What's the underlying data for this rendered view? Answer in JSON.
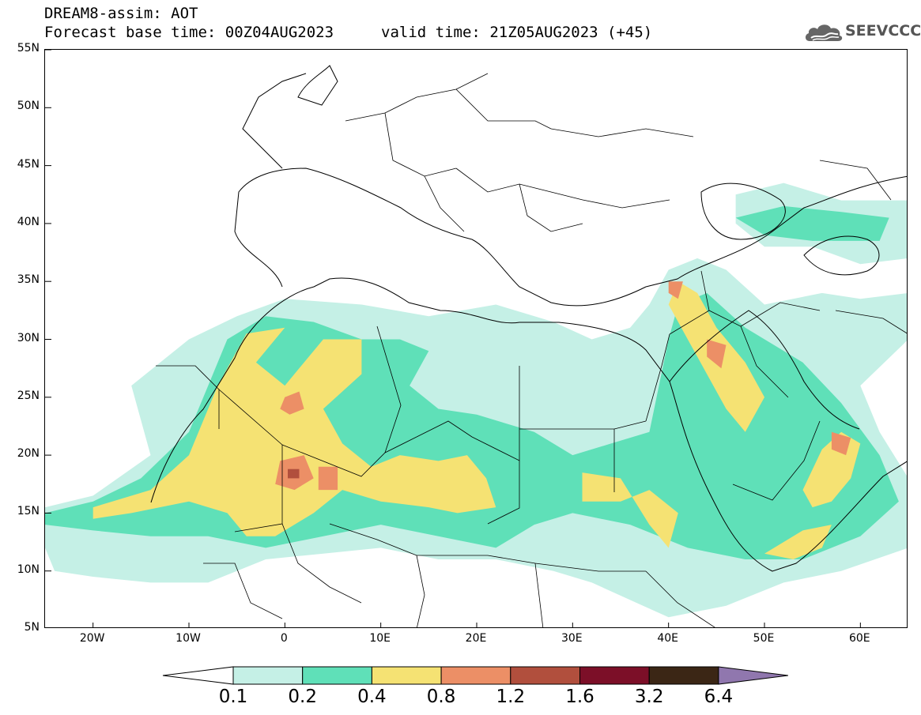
{
  "header": {
    "title": "DREAM8-assim: AOT",
    "base_time": "Forecast base time: 00Z04AUG2023",
    "valid_time": "valid time: 21Z05AUG2023 (+45)"
  },
  "logo": {
    "text": "SEEVCCC",
    "icon": "cloud-logo-icon",
    "color": "#555555"
  },
  "map": {
    "lon_range": [
      -25,
      65
    ],
    "lat_range": [
      5,
      55
    ],
    "lat_ticks": [
      {
        "value": 55,
        "label": "55N"
      },
      {
        "value": 50,
        "label": "50N"
      },
      {
        "value": 45,
        "label": "45N"
      },
      {
        "value": 40,
        "label": "40N"
      },
      {
        "value": 35,
        "label": "35N"
      },
      {
        "value": 30,
        "label": "30N"
      },
      {
        "value": 25,
        "label": "25N"
      },
      {
        "value": 20,
        "label": "20N"
      },
      {
        "value": 15,
        "label": "15N"
      },
      {
        "value": 10,
        "label": "10N"
      },
      {
        "value": 5,
        "label": "5N"
      }
    ],
    "lon_ticks": [
      {
        "value": -20,
        "label": "20W"
      },
      {
        "value": -10,
        "label": "10W"
      },
      {
        "value": 0,
        "label": "0"
      },
      {
        "value": 10,
        "label": "10E"
      },
      {
        "value": 20,
        "label": "20E"
      },
      {
        "value": 30,
        "label": "30E"
      },
      {
        "value": 40,
        "label": "40E"
      },
      {
        "value": 50,
        "label": "50E"
      },
      {
        "value": 60,
        "label": "60E"
      }
    ]
  },
  "colorbar": {
    "levels": [
      "0.1",
      "0.2",
      "0.4",
      "0.8",
      "1.2",
      "1.6",
      "3.2",
      "6.4"
    ],
    "colors": [
      "#ffffff",
      "#c5f0e6",
      "#5fe0b8",
      "#f5e273",
      "#ec8f66",
      "#b14f3d",
      "#7c0f28",
      "#3b2615",
      "#9077ae"
    ],
    "extend": "both"
  },
  "chart_data": {
    "type": "heatmap",
    "variable": "AOT",
    "thresholds": [
      0.1,
      0.2,
      0.4,
      0.8,
      1.2,
      1.6,
      3.2,
      6.4
    ],
    "regions": [
      {
        "level": 1,
        "points": [
          [
            -25,
            15.5
          ],
          [
            -20,
            16.5
          ],
          [
            -14,
            20
          ],
          [
            -16,
            26
          ],
          [
            -10,
            30
          ],
          [
            -5,
            32
          ],
          [
            0,
            33.5
          ],
          [
            8,
            33
          ],
          [
            15,
            32
          ],
          [
            22,
            33
          ],
          [
            28,
            31.5
          ],
          [
            32,
            30
          ],
          [
            36,
            31
          ],
          [
            38,
            33
          ],
          [
            40,
            36
          ],
          [
            43,
            37
          ],
          [
            46,
            36
          ],
          [
            50,
            33
          ],
          [
            56,
            34
          ],
          [
            60,
            33.5
          ],
          [
            65,
            34
          ],
          [
            65,
            30
          ],
          [
            60,
            26
          ],
          [
            62,
            22
          ],
          [
            65,
            18
          ],
          [
            65,
            12
          ],
          [
            58,
            10
          ],
          [
            52,
            9
          ],
          [
            46,
            7
          ],
          [
            40,
            6
          ],
          [
            36,
            7.5
          ],
          [
            32,
            9
          ],
          [
            28,
            10
          ],
          [
            22,
            11
          ],
          [
            16,
            11
          ],
          [
            10,
            12
          ],
          [
            4,
            11.5
          ],
          [
            -2,
            11
          ],
          [
            -8,
            9
          ],
          [
            -14,
            9
          ],
          [
            -20,
            9.5
          ],
          [
            -24,
            10
          ],
          [
            -25,
            12
          ]
        ]
      },
      {
        "level": 1,
        "points": [
          [
            47,
            42.5
          ],
          [
            52,
            43.5
          ],
          [
            58,
            42
          ],
          [
            65,
            42
          ],
          [
            65,
            37
          ],
          [
            60,
            36.5
          ],
          [
            55,
            38
          ],
          [
            50,
            38
          ],
          [
            47,
            40
          ]
        ]
      },
      {
        "level": 2,
        "points": [
          [
            -25,
            15
          ],
          [
            -20,
            16
          ],
          [
            -15,
            18
          ],
          [
            -10,
            22
          ],
          [
            -8,
            26
          ],
          [
            -6,
            30
          ],
          [
            -2,
            32
          ],
          [
            3,
            31.5
          ],
          [
            8,
            30
          ],
          [
            12,
            30
          ],
          [
            15,
            29
          ],
          [
            13,
            26
          ],
          [
            16,
            24
          ],
          [
            20,
            23.5
          ],
          [
            26,
            22
          ],
          [
            30,
            20
          ],
          [
            34,
            21
          ],
          [
            38,
            22
          ],
          [
            40,
            30
          ],
          [
            41,
            33
          ],
          [
            44,
            34
          ],
          [
            48,
            31
          ],
          [
            54,
            28
          ],
          [
            58,
            24.5
          ],
          [
            62,
            20
          ],
          [
            64,
            16
          ],
          [
            60,
            13
          ],
          [
            54,
            11
          ],
          [
            48,
            11
          ],
          [
            42,
            12
          ],
          [
            36,
            14
          ],
          [
            30,
            15
          ],
          [
            26,
            14
          ],
          [
            22,
            12
          ],
          [
            16,
            13
          ],
          [
            10,
            14
          ],
          [
            4,
            13
          ],
          [
            -2,
            12
          ],
          [
            -8,
            13
          ],
          [
            -14,
            13
          ],
          [
            -20,
            13.5
          ],
          [
            -25,
            14
          ]
        ]
      },
      {
        "level": 2,
        "points": [
          [
            47,
            40.5
          ],
          [
            52,
            41.5
          ],
          [
            58,
            41
          ],
          [
            63,
            40.5
          ],
          [
            62,
            38.5
          ],
          [
            55,
            38.5
          ],
          [
            50,
            39
          ]
        ]
      },
      {
        "level": 3,
        "points": [
          [
            -20,
            15.5
          ],
          [
            -14,
            17
          ],
          [
            -10,
            20
          ],
          [
            -7,
            26
          ],
          [
            -4,
            30.5
          ],
          [
            0,
            31
          ],
          [
            -3,
            28
          ],
          [
            0,
            26
          ],
          [
            4,
            30
          ],
          [
            8,
            30
          ],
          [
            8,
            27
          ],
          [
            4,
            24
          ],
          [
            6,
            21
          ],
          [
            9,
            19
          ],
          [
            12,
            20
          ],
          [
            16,
            19.5
          ],
          [
            19,
            20
          ],
          [
            21,
            18
          ],
          [
            22,
            15.5
          ],
          [
            18,
            15
          ],
          [
            15,
            15.5
          ],
          [
            10,
            16
          ],
          [
            6,
            17
          ],
          [
            3,
            15
          ],
          [
            -1,
            13
          ],
          [
            -4,
            13
          ],
          [
            -6,
            15
          ],
          [
            -10,
            16
          ],
          [
            -16,
            15
          ],
          [
            -20,
            14.5
          ]
        ]
      },
      {
        "level": 3,
        "points": [
          [
            31,
            18.5
          ],
          [
            35,
            18
          ],
          [
            38,
            14
          ],
          [
            40,
            12
          ],
          [
            41,
            15
          ],
          [
            38,
            17
          ],
          [
            35,
            16
          ],
          [
            31,
            16
          ]
        ]
      },
      {
        "level": 3,
        "points": [
          [
            41,
            35
          ],
          [
            43,
            34
          ],
          [
            45,
            31
          ],
          [
            48,
            28
          ],
          [
            50,
            25
          ],
          [
            48,
            22
          ],
          [
            46,
            24
          ],
          [
            44,
            27
          ],
          [
            42,
            30
          ],
          [
            40,
            33
          ]
        ]
      },
      {
        "level": 3,
        "points": [
          [
            54,
            17
          ],
          [
            56,
            20.5
          ],
          [
            58,
            22
          ],
          [
            60,
            21
          ],
          [
            59,
            18
          ],
          [
            57,
            16
          ],
          [
            55,
            15.5
          ]
        ]
      },
      {
        "level": 3,
        "points": [
          [
            50,
            11.5
          ],
          [
            54,
            13.5
          ],
          [
            57,
            14
          ],
          [
            56,
            12
          ],
          [
            53,
            11
          ]
        ]
      },
      {
        "level": 4,
        "points": [
          [
            -0.5,
            19.5
          ],
          [
            2,
            20
          ],
          [
            3,
            18
          ],
          [
            1,
            17
          ],
          [
            -1,
            17.5
          ]
        ]
      },
      {
        "level": 4,
        "points": [
          [
            3.5,
            19
          ],
          [
            5.5,
            19
          ],
          [
            5.5,
            17
          ],
          [
            3.5,
            17
          ]
        ]
      },
      {
        "level": 4,
        "points": [
          [
            0,
            25
          ],
          [
            1.5,
            25.5
          ],
          [
            2,
            24
          ],
          [
            0.5,
            23.5
          ],
          [
            -0.5,
            24
          ]
        ]
      },
      {
        "level": 4,
        "points": [
          [
            40,
            35
          ],
          [
            41.5,
            35
          ],
          [
            41,
            33.5
          ],
          [
            40,
            34
          ]
        ]
      },
      {
        "level": 4,
        "points": [
          [
            44,
            30
          ],
          [
            46,
            29.5
          ],
          [
            45.5,
            27.5
          ],
          [
            44,
            28.5
          ]
        ]
      },
      {
        "level": 4,
        "points": [
          [
            57,
            22
          ],
          [
            59,
            21.5
          ],
          [
            58.5,
            20
          ],
          [
            57,
            20.5
          ]
        ]
      },
      {
        "level": 5,
        "points": [
          [
            0.3,
            18.8
          ],
          [
            1.5,
            18.8
          ],
          [
            1.5,
            18
          ],
          [
            0.3,
            18
          ]
        ]
      }
    ]
  }
}
